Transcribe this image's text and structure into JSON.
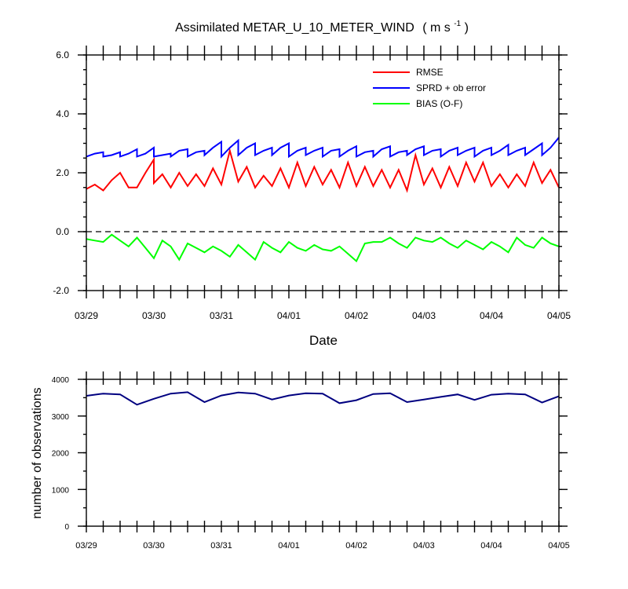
{
  "chart_data": [
    {
      "type": "line",
      "title": "Assimilated METAR_U_10_METER_WIND",
      "title_units": "( m s",
      "title_units_sup": "-1",
      "title_units_close": " )",
      "xlabel": "Date",
      "ylabel": "",
      "xlim": [
        0,
        56
      ],
      "ylim": [
        -2.0,
        6.0
      ],
      "x_tick_labels": [
        "03/29",
        "03/30",
        "03/31",
        "04/01",
        "04/02",
        "04/03",
        "04/04",
        "04/05"
      ],
      "y_ticks": [
        -2.0,
        0.0,
        2.0,
        4.0,
        6.0
      ],
      "y_tick_labels": [
        "-2.0",
        "0.0",
        "2.0",
        "4.0",
        "6.0"
      ],
      "zero_line": 0.0,
      "legend_position": "top-right",
      "series": [
        {
          "name": "RMSE",
          "color": "#ff0000",
          "x": [
            0,
            0,
            1,
            2,
            2,
            3,
            4,
            5,
            6,
            6,
            7,
            8,
            8,
            9,
            10,
            10,
            11,
            12,
            12,
            13,
            14,
            14,
            15,
            16,
            16,
            17,
            18,
            18,
            19,
            20,
            20,
            21,
            22,
            22,
            23,
            24,
            24,
            25,
            26,
            26,
            27,
            28,
            28,
            29,
            30,
            30,
            31,
            32,
            32,
            33,
            34,
            34,
            35,
            36,
            36,
            37,
            38,
            38,
            39,
            40,
            40,
            41,
            42,
            42,
            43,
            44,
            44,
            45,
            46,
            46,
            47,
            48,
            48,
            49,
            50,
            50,
            51,
            52,
            52,
            53,
            54,
            54,
            55,
            56,
            56
          ],
          "y": [
            1.45,
            1.45,
            1.6,
            1.4,
            1.4,
            1.75,
            2.0,
            1.5,
            1.5,
            1.5,
            2.0,
            2.45,
            1.65,
            1.95,
            1.5,
            1.5,
            2.0,
            1.55,
            1.55,
            1.95,
            1.55,
            1.55,
            2.15,
            1.6,
            1.6,
            2.75,
            1.7,
            1.7,
            2.2,
            1.5,
            1.5,
            1.9,
            1.55,
            1.55,
            2.15,
            1.5,
            1.5,
            2.35,
            1.55,
            1.55,
            2.2,
            1.6,
            1.6,
            2.1,
            1.5,
            1.5,
            2.35,
            1.55,
            1.55,
            2.2,
            1.55,
            1.55,
            2.1,
            1.5,
            1.5,
            2.1,
            1.4,
            1.4,
            2.6,
            1.6,
            1.6,
            2.15,
            1.5,
            1.5,
            2.2,
            1.55,
            1.55,
            2.35,
            1.7,
            1.7,
            2.35,
            1.55,
            1.55,
            1.95,
            1.5,
            1.5,
            1.95,
            1.55,
            1.55,
            2.35,
            1.65,
            1.65,
            2.1,
            1.5,
            1.5
          ]
        },
        {
          "name": "SPRD + ob error",
          "color": "#0000ff",
          "x": [
            0,
            0,
            1,
            2,
            2,
            3,
            4,
            4,
            5,
            6,
            6,
            7,
            8,
            8,
            9,
            10,
            10,
            11,
            12,
            12,
            13,
            14,
            14,
            15,
            16,
            16,
            17,
            18,
            18,
            19,
            20,
            20,
            21,
            22,
            22,
            23,
            24,
            24,
            25,
            26,
            26,
            27,
            28,
            28,
            29,
            30,
            30,
            31,
            32,
            32,
            33,
            34,
            34,
            35,
            36,
            36,
            37,
            38,
            38,
            39,
            40,
            40,
            41,
            42,
            42,
            43,
            44,
            44,
            45,
            46,
            46,
            47,
            48,
            48,
            49,
            50,
            50,
            51,
            52,
            52,
            53,
            54,
            54,
            55,
            56,
            56
          ],
          "y": [
            2.55,
            2.55,
            2.65,
            2.7,
            2.55,
            2.6,
            2.7,
            2.55,
            2.65,
            2.8,
            2.55,
            2.65,
            2.85,
            2.55,
            2.6,
            2.65,
            2.55,
            2.75,
            2.8,
            2.55,
            2.7,
            2.75,
            2.6,
            2.85,
            3.05,
            2.55,
            2.85,
            3.1,
            2.6,
            2.85,
            3.0,
            2.6,
            2.75,
            2.85,
            2.6,
            2.85,
            3.0,
            2.55,
            2.75,
            2.85,
            2.6,
            2.75,
            2.85,
            2.55,
            2.75,
            2.8,
            2.55,
            2.75,
            2.9,
            2.55,
            2.7,
            2.75,
            2.55,
            2.8,
            2.9,
            2.55,
            2.7,
            2.75,
            2.6,
            2.8,
            2.9,
            2.6,
            2.75,
            2.8,
            2.55,
            2.75,
            2.85,
            2.6,
            2.75,
            2.85,
            2.55,
            2.75,
            2.85,
            2.6,
            2.75,
            2.95,
            2.6,
            2.75,
            2.85,
            2.6,
            2.8,
            3.0,
            2.6,
            2.85,
            3.2,
            3.2
          ]
        },
        {
          "name": "BIAS (O-F)",
          "color": "#00ff00",
          "x": [
            0,
            1,
            2,
            3,
            4,
            5,
            6,
            7,
            8,
            9,
            10,
            11,
            12,
            13,
            14,
            15,
            16,
            17,
            18,
            19,
            20,
            21,
            22,
            23,
            24,
            25,
            26,
            27,
            28,
            29,
            30,
            31,
            32,
            33,
            34,
            35,
            36,
            37,
            38,
            39,
            40,
            41,
            42,
            43,
            44,
            45,
            46,
            47,
            48,
            49,
            50,
            51,
            52,
            53,
            54,
            55,
            56
          ],
          "y": [
            -0.25,
            -0.3,
            -0.35,
            -0.1,
            -0.3,
            -0.5,
            -0.2,
            -0.55,
            -0.9,
            -0.3,
            -0.5,
            -0.95,
            -0.4,
            -0.55,
            -0.7,
            -0.5,
            -0.65,
            -0.85,
            -0.45,
            -0.7,
            -0.95,
            -0.35,
            -0.55,
            -0.7,
            -0.35,
            -0.55,
            -0.65,
            -0.45,
            -0.6,
            -0.65,
            -0.5,
            -0.75,
            -1.0,
            -0.4,
            -0.35,
            -0.35,
            -0.2,
            -0.4,
            -0.55,
            -0.2,
            -0.3,
            -0.35,
            -0.2,
            -0.4,
            -0.55,
            -0.3,
            -0.45,
            -0.6,
            -0.35,
            -0.5,
            -0.7,
            -0.2,
            -0.45,
            -0.55,
            -0.2,
            -0.4,
            -0.5
          ]
        }
      ]
    },
    {
      "type": "line",
      "title": "",
      "xlabel": "",
      "ylabel": "number of observations",
      "xlim": [
        0,
        56
      ],
      "ylim": [
        0,
        4000
      ],
      "x_tick_labels": [
        "03/29",
        "03/30",
        "03/31",
        "04/01",
        "04/02",
        "04/03",
        "04/04",
        "04/05"
      ],
      "y_ticks": [
        0,
        1000,
        2000,
        3000,
        4000
      ],
      "y_tick_labels": [
        "0",
        "1000",
        "2000",
        "3000",
        "4000"
      ],
      "series": [
        {
          "color": "#000080",
          "x": [
            0,
            2,
            4,
            6,
            8,
            10,
            12,
            14,
            16,
            18,
            20,
            22,
            24,
            26,
            28,
            30,
            32,
            34,
            36,
            38,
            40,
            42,
            44,
            46,
            48,
            50,
            52,
            54,
            56
          ],
          "y": [
            3550,
            3610,
            3590,
            3310,
            3470,
            3610,
            3650,
            3380,
            3560,
            3640,
            3610,
            3450,
            3560,
            3620,
            3610,
            3350,
            3430,
            3600,
            3620,
            3380,
            3450,
            3520,
            3590,
            3440,
            3580,
            3610,
            3590,
            3370,
            3540
          ]
        }
      ]
    }
  ]
}
